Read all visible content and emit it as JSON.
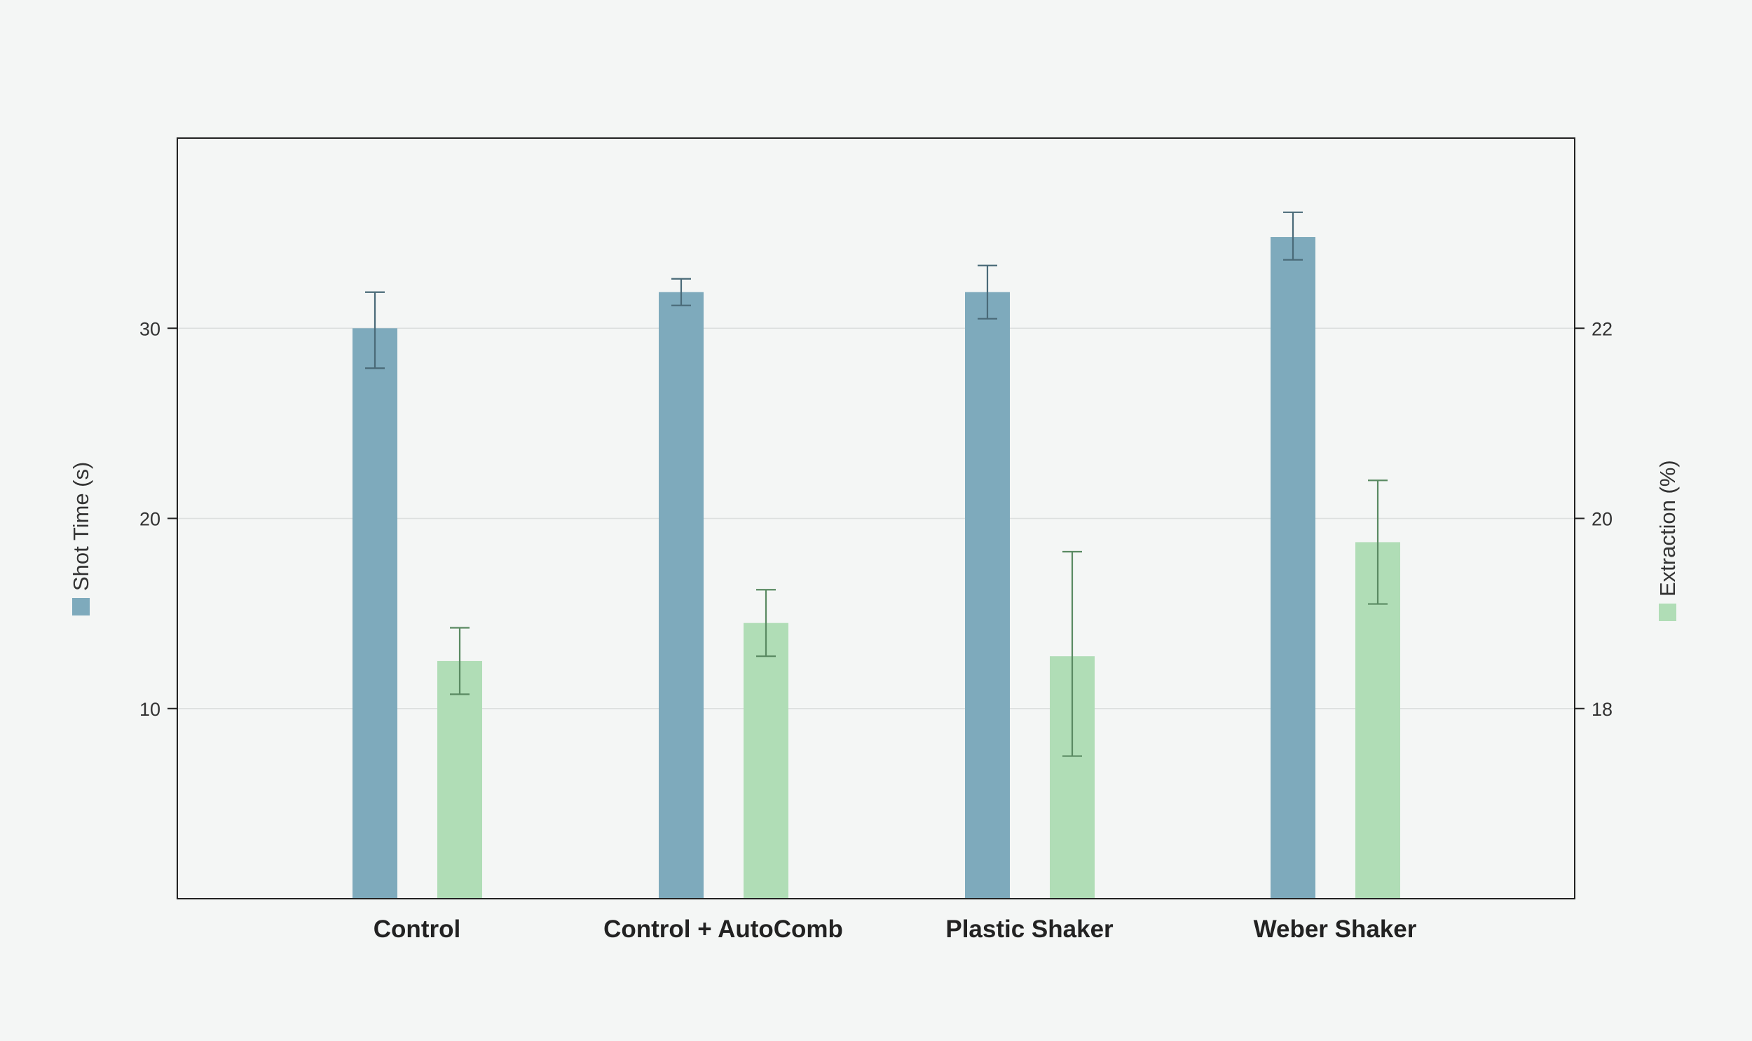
{
  "chart_data": {
    "type": "bar",
    "categories": [
      "Control",
      "Control + AutoComb",
      "Plastic Shaker",
      "Weber Shaker"
    ],
    "axes": {
      "left": {
        "label": "Shot Time (s)",
        "range": [
          0,
          40
        ],
        "ticks": [
          10,
          20,
          30
        ],
        "tick_labels": [
          "10",
          "20",
          "30"
        ]
      },
      "right": {
        "label": "Extraction (%)",
        "range": [
          16,
          24
        ],
        "ticks": [
          18,
          20,
          22
        ],
        "tick_labels": [
          "18",
          "20",
          "22"
        ]
      }
    },
    "series": [
      {
        "name": "Shot Time (s)",
        "axis": "left",
        "color": "#7eaabc",
        "error_color": "#4a6a78",
        "values": [
          30.0,
          31.9,
          31.9,
          34.8
        ],
        "error_low": [
          27.9,
          31.2,
          30.5,
          33.6
        ],
        "error_high": [
          31.9,
          32.6,
          33.3,
          36.1
        ]
      },
      {
        "name": "Extraction (%)",
        "axis": "right",
        "color": "#b0ddb6",
        "error_color": "#5a8a62",
        "values": [
          18.5,
          18.9,
          18.55,
          19.75
        ],
        "error_low": [
          18.15,
          18.55,
          17.5,
          19.1
        ],
        "error_high": [
          18.85,
          19.25,
          19.65,
          20.4
        ]
      }
    ],
    "grid": true,
    "grid_color": "#dcdfde",
    "legend": "vertical axis labels with color swatches"
  }
}
